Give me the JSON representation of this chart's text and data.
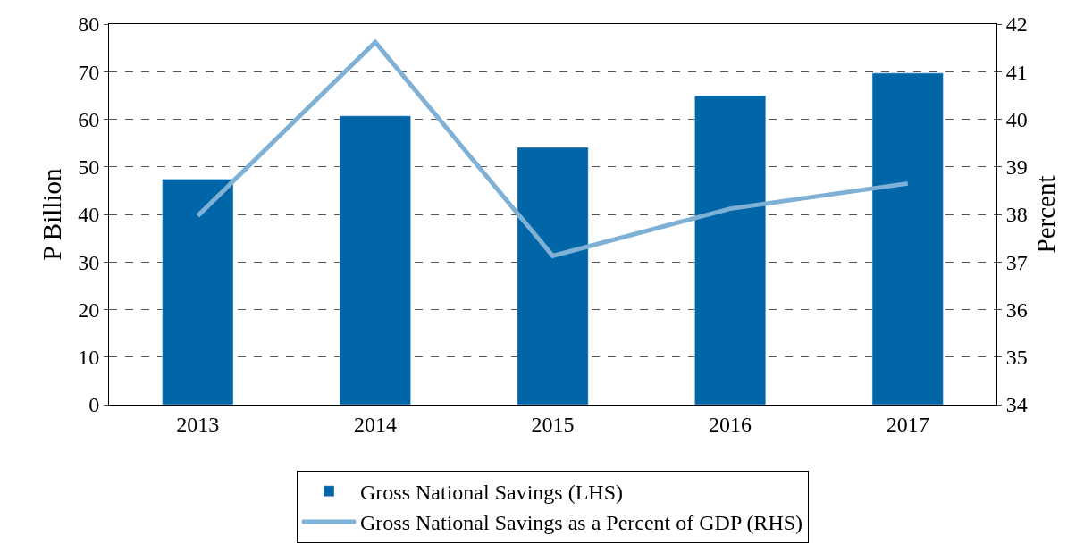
{
  "chart_data": {
    "type": "bar",
    "categories": [
      "2013",
      "2014",
      "2015",
      "2016",
      "2017"
    ],
    "series": [
      {
        "name": "Gross National Savings (LHS)",
        "color": "#0066a8",
        "values": [
          47.4,
          60.7,
          54.1,
          65.0,
          69.7
        ]
      },
      {
        "name": "Gross National Savings as a Percent of GDP (RHS)",
        "type": "line",
        "axis": "y2",
        "color": "#7fb0d5",
        "values": [
          37.97,
          41.62,
          37.13,
          38.12,
          38.65
        ]
      }
    ],
    "ylabel": "P Billion",
    "y2label": "Percent",
    "ylim": [
      0,
      80
    ],
    "yticks": [
      0,
      10,
      20,
      30,
      40,
      50,
      60,
      70,
      80
    ],
    "y2lim": [
      34,
      42
    ],
    "y2ticks": [
      34,
      35,
      36,
      37,
      38,
      39,
      40,
      41,
      42
    ],
    "grid": "y",
    "legend": "bottom",
    "marker": "none",
    "line_style": "solid"
  }
}
